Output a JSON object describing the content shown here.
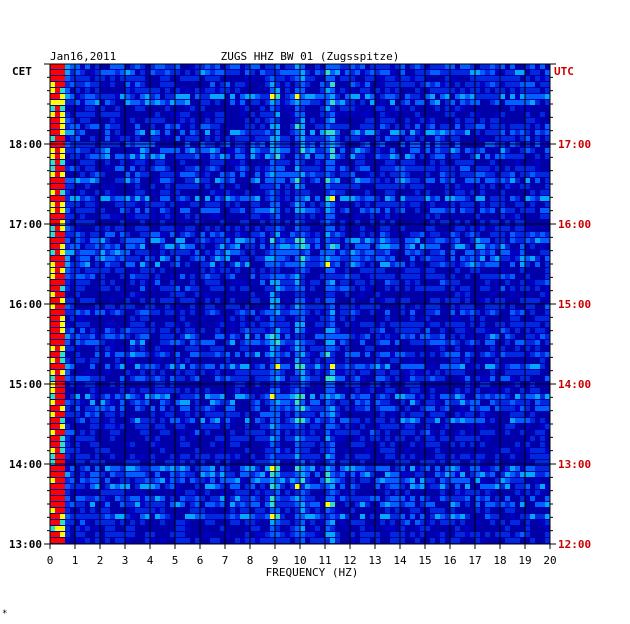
{
  "header": {
    "date": "Jan16,2011",
    "station": "ZUGS HHZ BW 01 (Zugsspitze)",
    "left_zone": "CET",
    "right_zone": "UTC"
  },
  "footer_mark": "*",
  "colors": {
    "background": "#0000a8",
    "accent_utc": "#cc0000",
    "grid": "#000000",
    "spectrum_low": "#0000c8",
    "spectrum_mid": "#00a8ff",
    "spectrum_high": "#ffff00",
    "spectrum_peak": "#ff0000"
  },
  "chart_data": {
    "type": "heatmap",
    "title": "ZUGS HHZ BW 01 (Zugsspitze)",
    "xlabel": "FREQUENCY (HZ)",
    "ylabel_left": "CET",
    "ylabel_right": "UTC",
    "xlim": [
      0,
      20
    ],
    "x_ticks": [
      "0",
      "1",
      "2",
      "3",
      "4",
      "5",
      "6",
      "7",
      "8",
      "9",
      "10",
      "11",
      "12",
      "13",
      "14",
      "15",
      "16",
      "17",
      "18",
      "19",
      "20"
    ],
    "left_time_ticks": [
      "18:00",
      "17:00",
      "16:00",
      "15:00",
      "14:00",
      "13:00"
    ],
    "right_time_ticks": [
      "17:00",
      "16:00",
      "15:00",
      "14:00",
      "13:00",
      "12:00"
    ],
    "time_range_cet_hours": [
      13,
      19
    ],
    "dominant_frequencies_hz": [
      0.3,
      9.0,
      10.0,
      11.2
    ],
    "grid": true
  }
}
